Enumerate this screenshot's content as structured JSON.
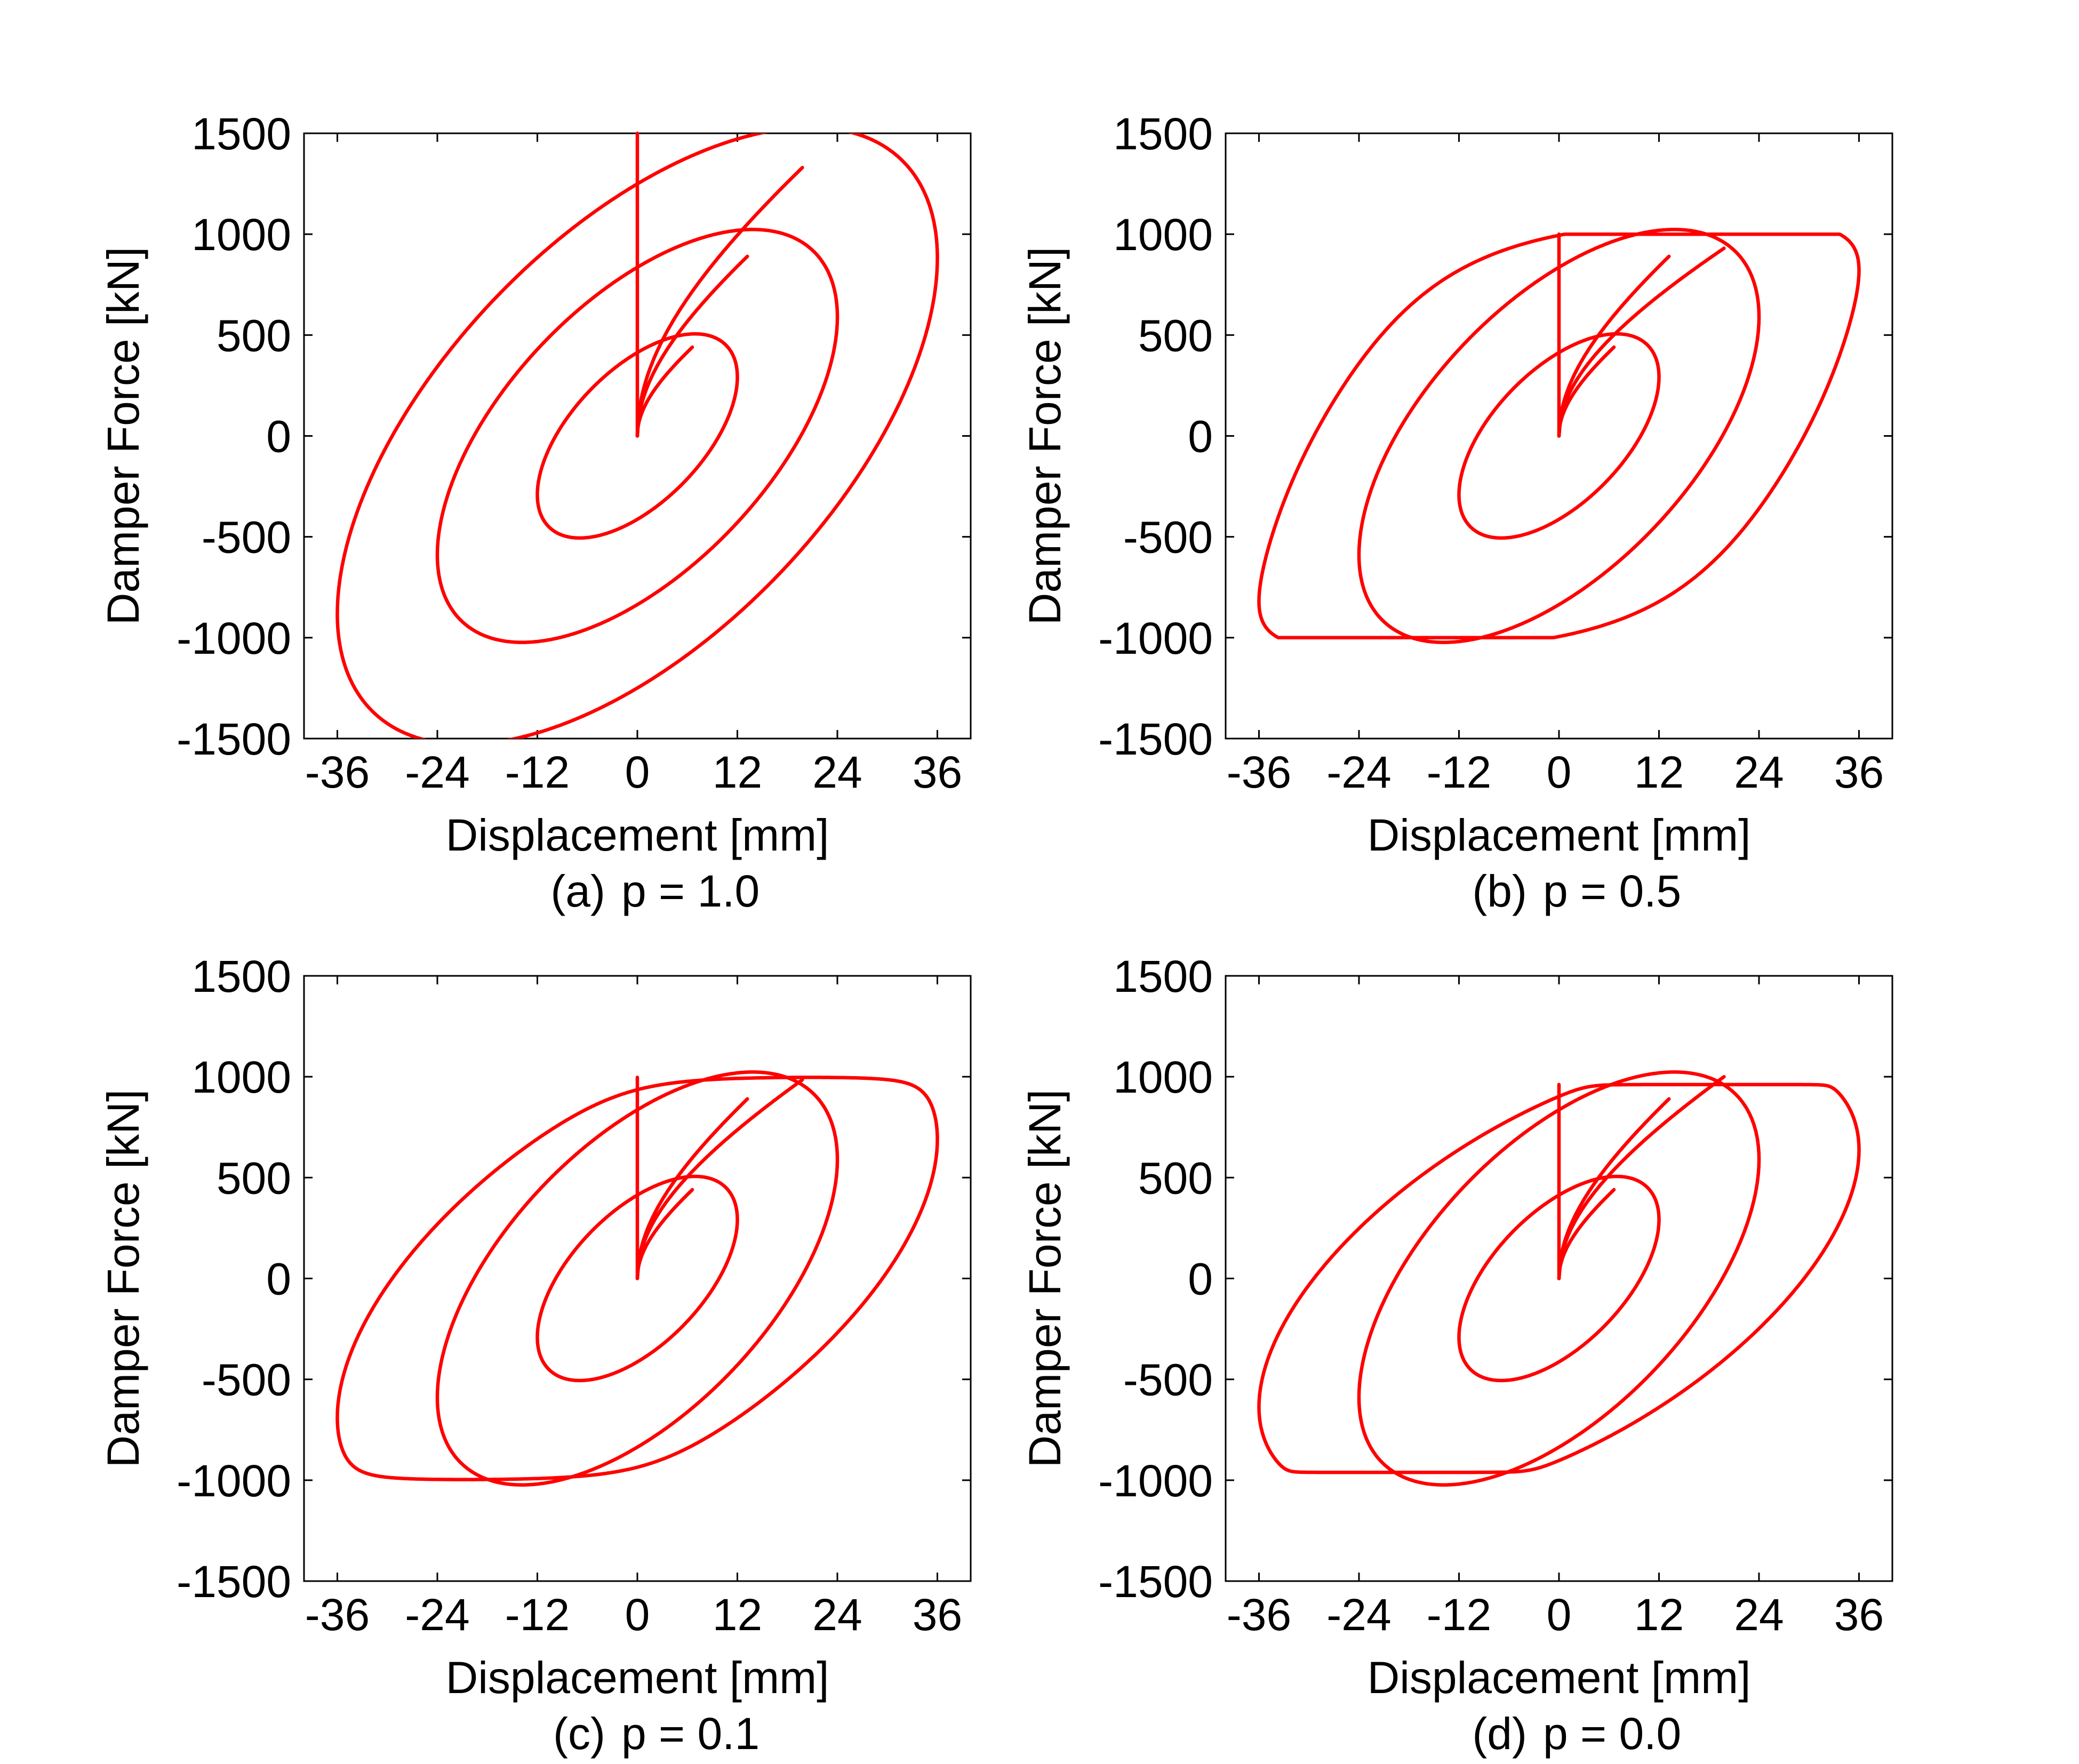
{
  "figure": {
    "curve_color": "#ff0000",
    "background": "#ffffff"
  },
  "chart_data": [
    {
      "type": "line",
      "panel": "(a)",
      "caption_label": "(a)",
      "caption_param": "p = 1.0",
      "xlabel": "Displacement [mm]",
      "ylabel": "Damper Force [kN]",
      "xlim": [
        -40,
        40
      ],
      "ylim": [
        -1500,
        1500
      ],
      "xticks": [
        -36,
        -24,
        -12,
        0,
        12,
        24,
        36
      ],
      "yticks": [
        -1500,
        -1000,
        -500,
        0,
        500,
        1000,
        1500
      ],
      "grid": false,
      "legend": "none",
      "p": 1.0,
      "force_limit_kN": 1000,
      "loops": [
        {
          "amplitude_mm": 12,
          "peak_force_kN": 440
        },
        {
          "amplitude_mm": 24,
          "peak_force_kN": 890
        },
        {
          "amplitude_mm": 36,
          "peak_force_kN": 1330
        }
      ]
    },
    {
      "type": "line",
      "panel": "(b)",
      "caption_label": "(b)",
      "caption_param": "p = 0.5",
      "xlabel": "Displacement [mm]",
      "ylabel": "Damper Force [kN]",
      "xlim": [
        -40,
        40
      ],
      "ylim": [
        -1500,
        1500
      ],
      "xticks": [
        -36,
        -24,
        -12,
        0,
        12,
        24,
        36
      ],
      "yticks": [
        -1500,
        -1000,
        -500,
        0,
        500,
        1000,
        1500
      ],
      "grid": false,
      "legend": "none",
      "p": 0.5,
      "force_limit_kN": 1000,
      "loops": [
        {
          "amplitude_mm": 12,
          "peak_force_kN": 440
        },
        {
          "amplitude_mm": 24,
          "peak_force_kN": 890
        },
        {
          "amplitude_mm": 36,
          "peak_force_kN": 1175
        }
      ]
    },
    {
      "type": "line",
      "panel": "(c)",
      "caption_label": "(c)",
      "caption_param": "p = 0.1",
      "xlabel": "Displacement [mm]",
      "ylabel": "Damper Force [kN]",
      "xlim": [
        -40,
        40
      ],
      "ylim": [
        -1500,
        1500
      ],
      "xticks": [
        -36,
        -24,
        -12,
        0,
        12,
        24,
        36
      ],
      "yticks": [
        -1500,
        -1000,
        -500,
        0,
        500,
        1000,
        1500
      ],
      "grid": false,
      "legend": "none",
      "p": 0.1,
      "force_limit_kN": 1000,
      "loops": [
        {
          "amplitude_mm": 12,
          "peak_force_kN": 440
        },
        {
          "amplitude_mm": 24,
          "peak_force_kN": 890
        },
        {
          "amplitude_mm": 36,
          "peak_force_kN": 1035
        }
      ]
    },
    {
      "type": "line",
      "panel": "(d)",
      "caption_label": "(d)",
      "caption_param": "p = 0.0",
      "xlabel": "Displacement [mm]",
      "ylabel": "Damper Force [kN]",
      "xlim": [
        -40,
        40
      ],
      "ylim": [
        -1500,
        1500
      ],
      "xticks": [
        -36,
        -24,
        -12,
        0,
        12,
        24,
        36
      ],
      "yticks": [
        -1500,
        -1000,
        -500,
        0,
        500,
        1000,
        1500
      ],
      "grid": false,
      "legend": "none",
      "p": 0.0,
      "force_limit_kN": 1000,
      "loops": [
        {
          "amplitude_mm": 12,
          "peak_force_kN": 440
        },
        {
          "amplitude_mm": 24,
          "peak_force_kN": 890
        },
        {
          "amplitude_mm": 36,
          "peak_force_kN": 1000
        }
      ]
    }
  ]
}
